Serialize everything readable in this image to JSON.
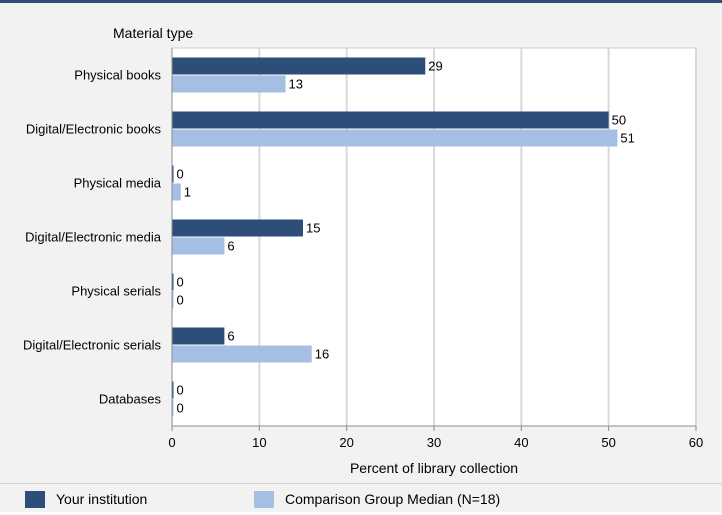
{
  "chart_data": {
    "type": "bar",
    "orientation": "horizontal",
    "category_axis_title": "Material type",
    "xlabel": "Percent of library collection",
    "categories": [
      "Physical books",
      "Digital/Electronic books",
      "Physical media",
      "Digital/Electronic media",
      "Physical serials",
      "Digital/Electronic serials",
      "Databases"
    ],
    "series": [
      {
        "name": "Your institution",
        "color": "#2c4e78",
        "values": [
          29,
          50,
          0,
          15,
          0,
          6,
          0
        ]
      },
      {
        "name": "Comparison Group Median (N=18)",
        "color": "#a4bfe3",
        "values": [
          13,
          51,
          1,
          6,
          0,
          16,
          0
        ]
      }
    ],
    "xlim": [
      0,
      60
    ],
    "xticks": [
      0,
      10,
      20,
      30,
      40,
      50,
      60
    ],
    "grid": true,
    "legend_position": "bottom"
  }
}
